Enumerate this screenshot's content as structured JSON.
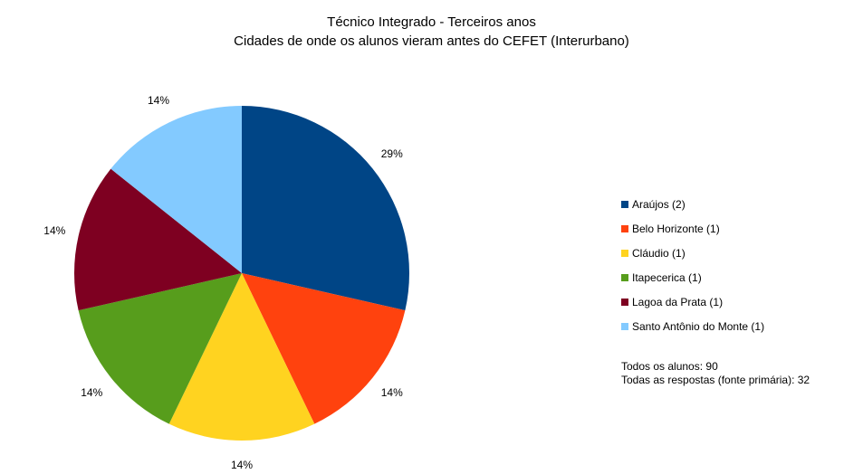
{
  "chart_data": {
    "type": "pie",
    "title": "Técnico Integrado - Terceiros anos",
    "subtitle": "Cidades de onde os alunos vieram antes do CEFET (Interurbano)",
    "slices": [
      {
        "label": "Araújos (2)",
        "value": 2,
        "percent_label": "29%",
        "color": "#004586"
      },
      {
        "label": "Belo Horizonte (1)",
        "value": 1,
        "percent_label": "14%",
        "color": "#ff420e"
      },
      {
        "label": "Cláudio (1)",
        "value": 1,
        "percent_label": "14%",
        "color": "#ffd320"
      },
      {
        "label": "Itapecerica (1)",
        "value": 1,
        "percent_label": "14%",
        "color": "#579d1c"
      },
      {
        "label": "Lagoa da Prata (1)",
        "value": 1,
        "percent_label": "14%",
        "color": "#7e0021"
      },
      {
        "label": "Santo Antônio do Monte (1)",
        "value": 1,
        "percent_label": "14%",
        "color": "#83caff"
      }
    ],
    "legend_position": "right",
    "notes": [
      "Todos os alunos: 90",
      "Todas as respostas (fonte primária): 32"
    ]
  }
}
